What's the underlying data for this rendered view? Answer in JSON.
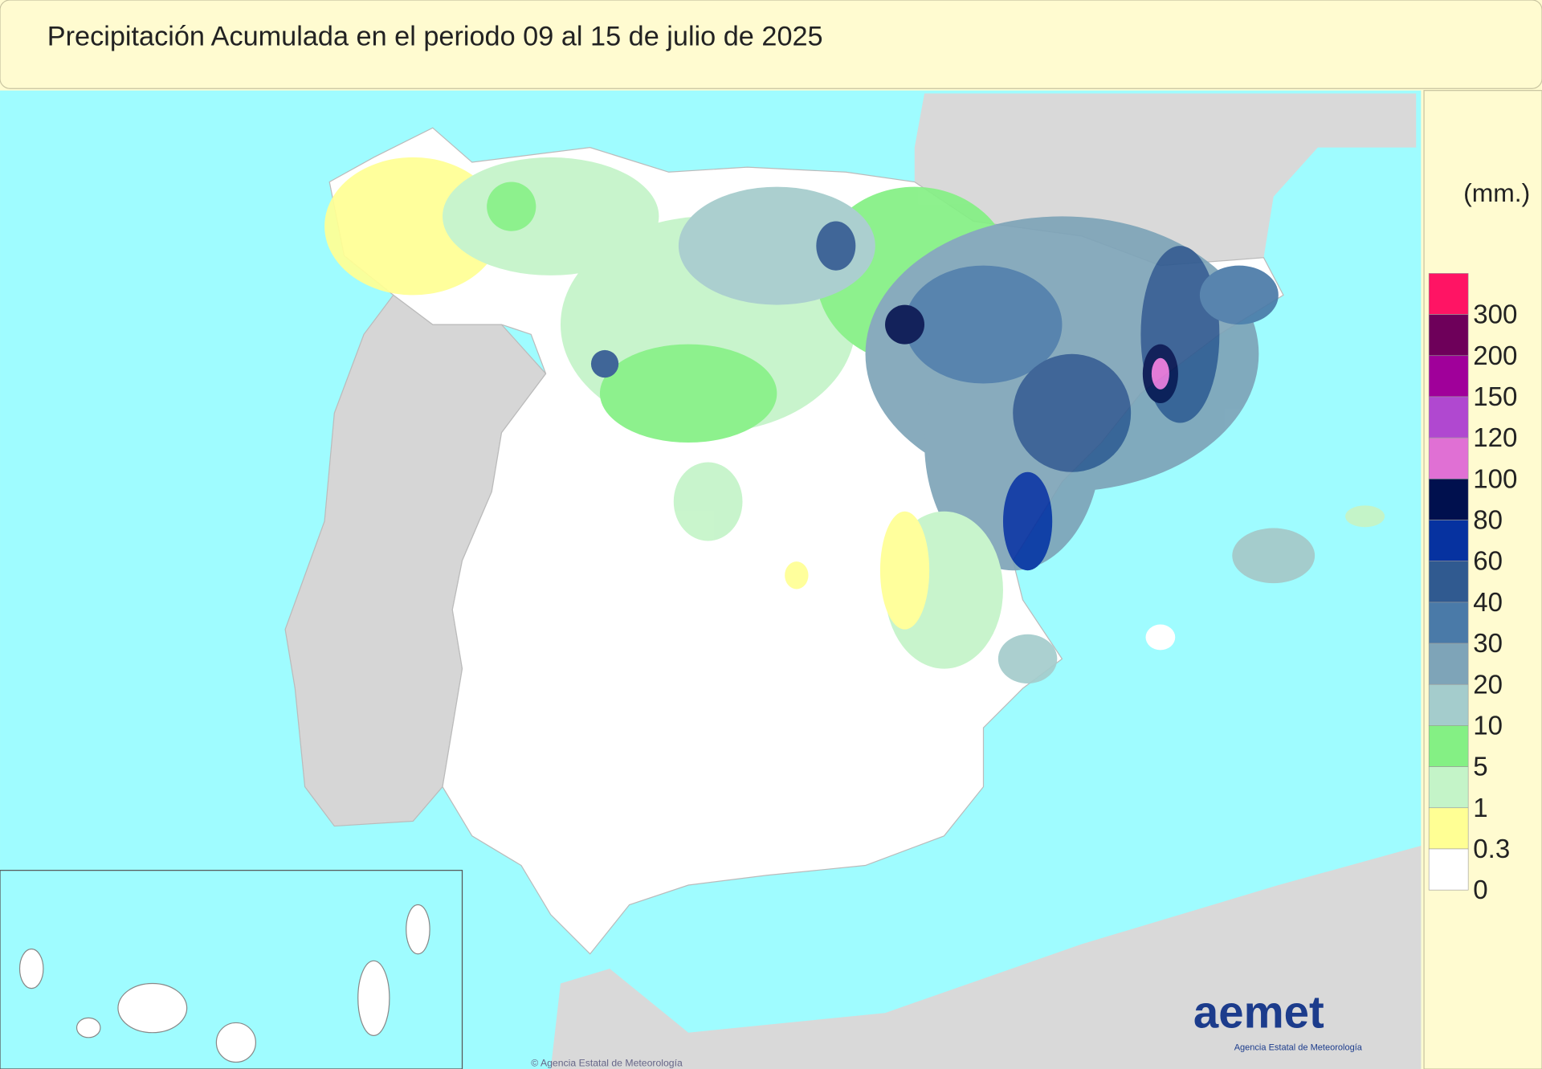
{
  "header": {
    "title": "Precipitación Acumulada en el periodo 09 al 15 de julio de 2025"
  },
  "legend": {
    "unit": "(mm.)",
    "levels": [
      {
        "label": "300",
        "color": "#ff1464"
      },
      {
        "label": "200",
        "color": "#6e005a"
      },
      {
        "label": "150",
        "color": "#a0009a"
      },
      {
        "label": "120",
        "color": "#b048d0"
      },
      {
        "label": "100",
        "color": "#e070d4"
      },
      {
        "label": "80",
        "color": "#00104e"
      },
      {
        "label": "60",
        "color": "#0632a0"
      },
      {
        "label": "40",
        "color": "#305a90"
      },
      {
        "label": "30",
        "color": "#4a7aa8"
      },
      {
        "label": "20",
        "color": "#7ea4b8"
      },
      {
        "label": "10",
        "color": "#a4cccc"
      },
      {
        "label": "5",
        "color": "#84f084"
      },
      {
        "label": "1",
        "color": "#c4f4c8"
      },
      {
        "label": "0.3",
        "color": "#ffff94"
      },
      {
        "label": "0",
        "color": "#ffffff"
      }
    ]
  },
  "logo": {
    "name": "aemet",
    "subtitle": "Agencia Estatal de Meteorología"
  },
  "footer": {
    "credit": "© Agencia Estatal de Meteorología"
  }
}
